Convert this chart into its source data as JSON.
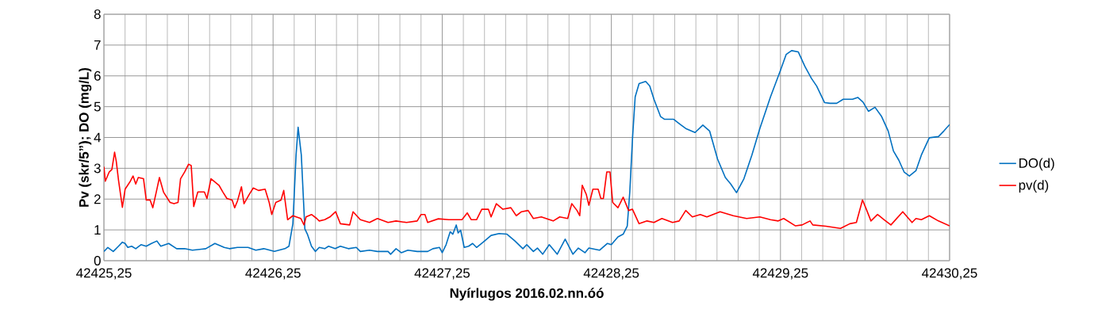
{
  "chart_data": {
    "type": "line",
    "xlabel": "Nyírlugos 2016.02.nn.óó",
    "ylabel": "Pv (skr/5”); DO (mg/L)",
    "xlim": [
      42425.25,
      42430.25
    ],
    "xticks": [
      {
        "value": 42425.25,
        "label": "42425,25"
      },
      {
        "value": 42426.25,
        "label": "42426,25"
      },
      {
        "value": 42427.25,
        "label": "42427,25"
      },
      {
        "value": 42428.25,
        "label": "42428,25"
      },
      {
        "value": 42429.25,
        "label": "42429,25"
      },
      {
        "value": 42430.25,
        "label": "42430,25"
      }
    ],
    "ylim": [
      0,
      8
    ],
    "yticks": [
      0,
      1,
      2,
      3,
      4,
      5,
      6,
      7,
      8
    ],
    "grid": true,
    "legend": "right",
    "series": [
      {
        "name": "DO(d)",
        "color": "#0070c0",
        "x": [
          42425.25,
          42425.273,
          42425.305,
          42425.336,
          42425.359,
          42425.375,
          42425.391,
          42425.414,
          42425.438,
          42425.469,
          42425.5,
          42425.531,
          42425.563,
          42425.586,
          42425.633,
          42425.68,
          42425.727,
          42425.773,
          42425.852,
          42425.906,
          42425.961,
          42425.992,
          42426.039,
          42426.102,
          42426.148,
          42426.195,
          42426.258,
          42426.32,
          42426.344,
          42426.367,
          42426.386,
          42426.398,
          42426.417,
          42426.438,
          42426.453,
          42426.477,
          42426.5,
          42426.523,
          42426.555,
          42426.578,
          42426.617,
          42426.648,
          42426.695,
          42426.742,
          42426.766,
          42426.82,
          42426.867,
          42426.93,
          42426.945,
          42426.977,
          42427.008,
          42427.047,
          42427.102,
          42427.164,
          42427.195,
          42427.234,
          42427.25,
          42427.273,
          42427.297,
          42427.313,
          42427.333,
          42427.344,
          42427.359,
          42427.38,
          42427.406,
          42427.43,
          42427.453,
          42427.492,
          42427.539,
          42427.586,
          42427.633,
          42427.68,
          42427.727,
          42427.75,
          42427.789,
          42427.813,
          42427.844,
          42427.883,
          42427.93,
          42427.977,
          42428.023,
          42428.055,
          42428.094,
          42428.117,
          42428.18,
          42428.227,
          42428.25,
          42428.289,
          42428.32,
          42428.344,
          42428.359,
          42428.375,
          42428.391,
          42428.414,
          42428.453,
          42428.477,
          42428.502,
          42428.541,
          42428.565,
          42428.619,
          42428.658,
          42428.69,
          42428.745,
          42428.791,
          42428.831,
          42428.878,
          42428.924,
          42428.956,
          42428.99,
          42429.034,
          42429.081,
          42429.128,
          42429.191,
          42429.25,
          42429.284,
          42429.316,
          42429.355,
          42429.394,
          42429.433,
          42429.464,
          42429.511,
          42429.543,
          42429.582,
          42429.621,
          42429.676,
          42429.707,
          42429.738,
          42429.77,
          42429.809,
          42429.848,
          42429.887,
          42429.918,
          42429.95,
          42429.981,
          42430.012,
          42430.051,
          42430.083,
          42430.13,
          42430.184,
          42430.216,
          42430.25
        ],
        "values": [
          0.3,
          0.43,
          0.3,
          0.47,
          0.6,
          0.56,
          0.43,
          0.47,
          0.39,
          0.52,
          0.47,
          0.56,
          0.64,
          0.47,
          0.56,
          0.39,
          0.39,
          0.34,
          0.39,
          0.56,
          0.43,
          0.39,
          0.43,
          0.43,
          0.34,
          0.39,
          0.3,
          0.39,
          0.47,
          1.2,
          3.43,
          4.33,
          3.43,
          1.03,
          0.86,
          0.47,
          0.3,
          0.43,
          0.39,
          0.47,
          0.39,
          0.47,
          0.39,
          0.43,
          0.3,
          0.34,
          0.3,
          0.3,
          0.21,
          0.39,
          0.26,
          0.34,
          0.3,
          0.3,
          0.39,
          0.43,
          0.26,
          0.52,
          0.94,
          0.86,
          1.16,
          0.9,
          0.99,
          0.43,
          0.47,
          0.56,
          0.43,
          0.6,
          0.82,
          0.88,
          0.86,
          0.64,
          0.39,
          0.52,
          0.3,
          0.41,
          0.21,
          0.52,
          0.21,
          0.7,
          0.21,
          0.41,
          0.26,
          0.41,
          0.34,
          0.56,
          0.52,
          0.77,
          0.86,
          1.12,
          2.23,
          3.95,
          5.32,
          5.75,
          5.82,
          5.67,
          5.24,
          4.68,
          4.59,
          4.59,
          4.42,
          4.29,
          4.16,
          4.4,
          4.21,
          3.3,
          2.7,
          2.49,
          2.21,
          2.66,
          3.43,
          4.29,
          5.32,
          6.18,
          6.7,
          6.82,
          6.78,
          6.31,
          5.92,
          5.67,
          5.13,
          5.11,
          5.11,
          5.24,
          5.24,
          5.3,
          5.15,
          4.85,
          4.98,
          4.68,
          4.21,
          3.56,
          3.26,
          2.88,
          2.75,
          2.92,
          3.43,
          3.99,
          4.03,
          4.21,
          4.42
        ]
      },
      {
        "name": "pv(d)",
        "color": "#ff0000",
        "x": [
          42425.25,
          42425.258,
          42425.281,
          42425.297,
          42425.313,
          42425.323,
          42425.336,
          42425.359,
          42425.375,
          42425.406,
          42425.422,
          42425.438,
          42425.453,
          42425.484,
          42425.5,
          42425.523,
          42425.539,
          42425.563,
          42425.578,
          42425.602,
          42425.641,
          42425.664,
          42425.688,
          42425.703,
          42425.727,
          42425.75,
          42425.766,
          42425.781,
          42425.805,
          42425.844,
          42425.859,
          42425.883,
          42425.93,
          42425.953,
          42425.977,
          42426.008,
          42426.023,
          42426.039,
          42426.063,
          42426.078,
          42426.109,
          42426.133,
          42426.164,
          42426.203,
          42426.227,
          42426.242,
          42426.266,
          42426.297,
          42426.313,
          42426.336,
          42426.367,
          42426.414,
          42426.433,
          42426.445,
          42426.477,
          42426.508,
          42426.523,
          42426.555,
          42426.586,
          42426.62,
          42426.648,
          42426.703,
          42426.723,
          42426.766,
          42426.82,
          42426.867,
          42426.93,
          42426.977,
          42427.039,
          42427.102,
          42427.125,
          42427.148,
          42427.164,
          42427.227,
          42427.289,
          42427.367,
          42427.398,
          42427.422,
          42427.453,
          42427.484,
          42427.523,
          42427.539,
          42427.57,
          42427.609,
          42427.656,
          42427.688,
          42427.719,
          42427.758,
          42427.789,
          42427.836,
          42427.906,
          42427.945,
          42427.992,
          42428.016,
          42428.047,
          42428.063,
          42428.078,
          42428.102,
          42428.117,
          42428.141,
          42428.172,
          42428.188,
          42428.203,
          42428.223,
          42428.242,
          42428.258,
          42428.289,
          42428.32,
          42428.352,
          42428.375,
          42428.414,
          42428.461,
          42428.502,
          42428.549,
          42428.612,
          42428.651,
          42428.69,
          42428.729,
          42428.776,
          42428.815,
          42428.893,
          42428.971,
          42429.05,
          42429.128,
          42429.191,
          42429.237,
          42429.269,
          42429.339,
          42429.378,
          42429.425,
          42429.441,
          42429.519,
          42429.605,
          42429.66,
          42429.699,
          42429.735,
          42429.754,
          42429.785,
          42429.824,
          42429.863,
          42429.903,
          42429.973,
          42430.028,
          42430.051,
          42430.083,
          42430.13,
          42430.184,
          42430.25
        ],
        "values": [
          3.05,
          2.58,
          2.88,
          2.96,
          3.52,
          3.22,
          2.62,
          1.73,
          2.32,
          2.58,
          2.75,
          2.49,
          2.7,
          2.66,
          1.97,
          1.97,
          1.72,
          2.32,
          2.7,
          2.23,
          1.89,
          1.85,
          1.89,
          2.66,
          2.88,
          3.13,
          3.09,
          1.76,
          2.23,
          2.23,
          2.02,
          2.66,
          2.45,
          2.23,
          2.02,
          1.97,
          1.72,
          1.93,
          2.4,
          1.85,
          2.15,
          2.36,
          2.28,
          2.32,
          1.89,
          1.5,
          1.89,
          1.97,
          2.28,
          1.33,
          1.46,
          1.37,
          1.16,
          1.42,
          1.5,
          1.37,
          1.29,
          1.33,
          1.42,
          1.59,
          1.2,
          1.16,
          1.59,
          1.33,
          1.24,
          1.37,
          1.24,
          1.29,
          1.24,
          1.29,
          1.5,
          1.5,
          1.24,
          1.36,
          1.33,
          1.33,
          1.55,
          1.33,
          1.33,
          1.67,
          1.67,
          1.42,
          1.85,
          1.67,
          1.72,
          1.46,
          1.59,
          1.63,
          1.37,
          1.42,
          1.29,
          1.42,
          1.37,
          1.85,
          1.63,
          1.46,
          2.45,
          2.15,
          1.8,
          2.32,
          2.32,
          2.02,
          2.02,
          2.88,
          2.88,
          1.89,
          1.72,
          2.06,
          1.63,
          1.67,
          1.2,
          1.29,
          1.24,
          1.37,
          1.24,
          1.29,
          1.63,
          1.42,
          1.5,
          1.42,
          1.59,
          1.46,
          1.37,
          1.42,
          1.33,
          1.29,
          1.37,
          1.13,
          1.16,
          1.29,
          1.16,
          1.12,
          1.05,
          1.2,
          1.24,
          1.97,
          1.72,
          1.29,
          1.5,
          1.33,
          1.16,
          1.59,
          1.24,
          1.37,
          1.33,
          1.46,
          1.29,
          1.13
        ]
      }
    ]
  }
}
